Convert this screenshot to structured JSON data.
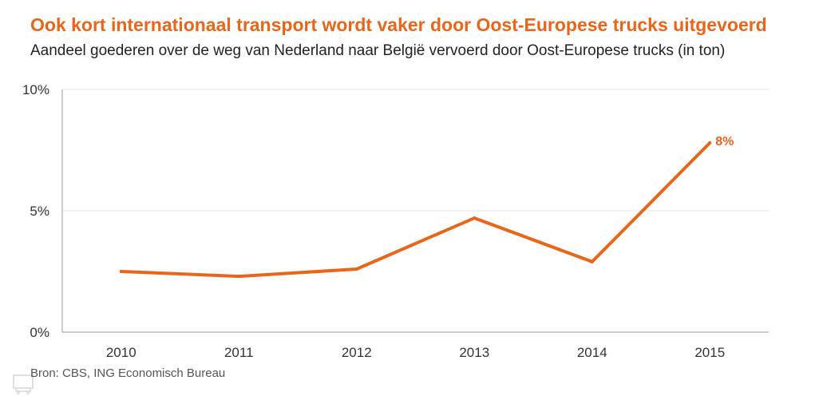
{
  "chart_data": {
    "type": "line",
    "title": "Ook kort internationaal transport wordt vaker door Oost-Europese trucks uitgevoerd",
    "subtitle": "Aandeel goederen over de weg van Nederland naar België vervoerd door Oost-Europese trucks (in ton)",
    "categories": [
      "2010",
      "2011",
      "2012",
      "2013",
      "2014",
      "2015"
    ],
    "series": [
      {
        "values": [
          2.5,
          2.3,
          2.6,
          4.7,
          2.9,
          7.8
        ],
        "color": "#e8651a"
      }
    ],
    "ylim": [
      0,
      10
    ],
    "yticks": [
      0,
      5,
      10
    ],
    "ytick_labels": [
      "0%",
      "5%",
      "10%"
    ],
    "xlabel": "",
    "ylabel": "",
    "grid": true,
    "data_label": {
      "index": 5,
      "text": "8%"
    },
    "source": "Bron: CBS, ING Economisch Bureau",
    "colors": {
      "accent": "#e8651a",
      "grid": "#e5e5e5",
      "axis": "#999999"
    }
  },
  "watermark_icon": "truck-icon"
}
